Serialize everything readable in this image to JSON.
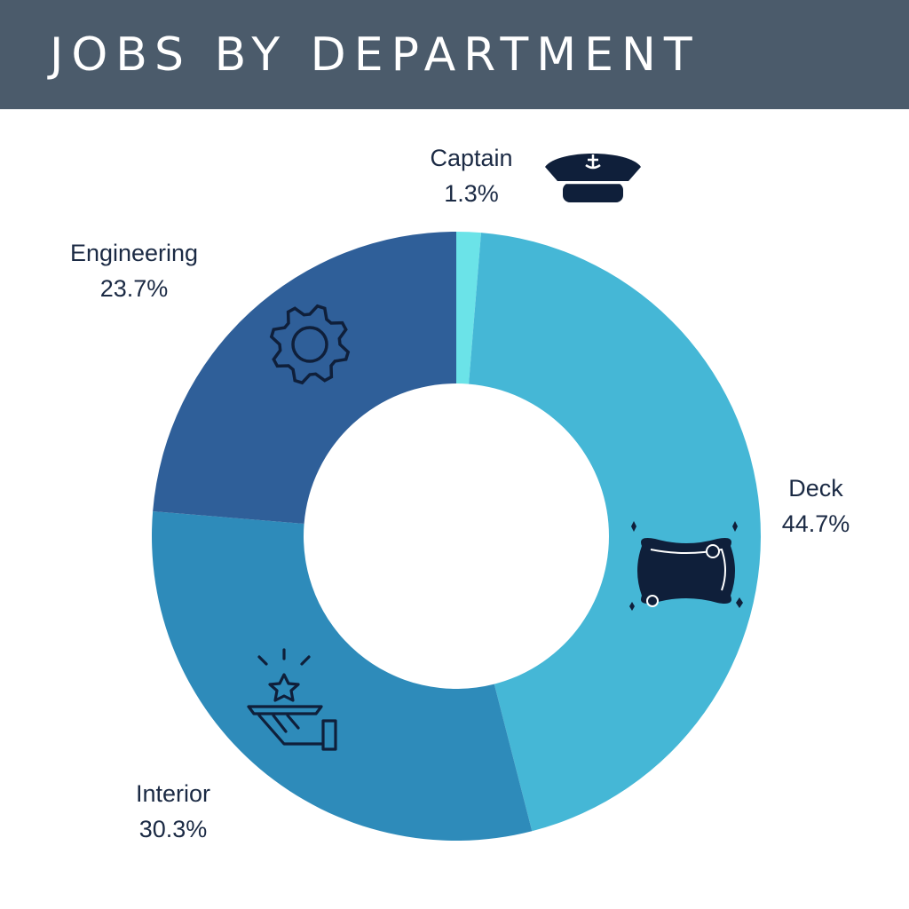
{
  "colors": {
    "header_bg": "#4b5b6b",
    "title_text": "#ffffff",
    "label_text": "#1b2a44",
    "icon": "#0f1f3a"
  },
  "header": {
    "title": "JOBS BY DEPARTMENT"
  },
  "chart_data": {
    "type": "pie",
    "donut": true,
    "title": "JOBS BY DEPARTMENT",
    "start_angle_deg": 0,
    "direction": "clockwise",
    "categories": [
      "Captain",
      "Deck",
      "Interior",
      "Engineering"
    ],
    "values": [
      1.3,
      44.7,
      30.3,
      23.7
    ],
    "value_labels": [
      "1.3%",
      "44.7%",
      "30.3%",
      "23.7%"
    ],
    "colors": [
      "#6be3e8",
      "#45b7d6",
      "#2e8bba",
      "#2f5f99"
    ],
    "icons": [
      "captain-hat-icon",
      "sponge-icon",
      "serving-tray-star-icon",
      "gear-icon"
    ],
    "legend": "none"
  }
}
